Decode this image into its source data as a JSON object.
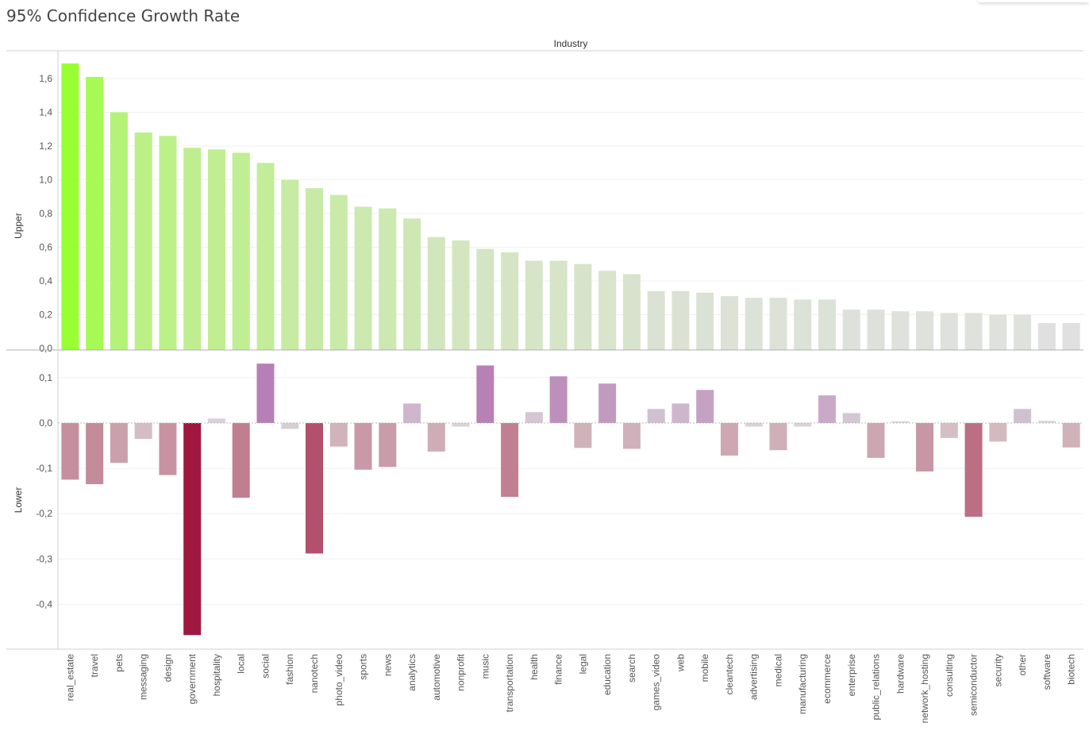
{
  "title": "95% Confidence Growth Rate",
  "chart_data": [
    {
      "type": "bar",
      "column_header": "Industry",
      "ylabel": "Upper",
      "ylim": [
        0,
        1.7
      ],
      "yticks": [
        0.0,
        0.2,
        0.4,
        0.6,
        0.8,
        1.0,
        1.2,
        1.4,
        1.6
      ],
      "yticks_labels": [
        "0,0",
        "0,2",
        "0,4",
        "0,6",
        "0,8",
        "1,0",
        "1,2",
        "1,4",
        "1,6"
      ],
      "categories": [
        "real_estate",
        "travel",
        "pets",
        "messaging",
        "design",
        "government",
        "hospitality",
        "local",
        "social",
        "fashion",
        "nanotech",
        "photo_video",
        "sports",
        "news",
        "analytics",
        "automotive",
        "nonprofit",
        "music",
        "transportation",
        "health",
        "finance",
        "legal",
        "education",
        "search",
        "games_video",
        "web",
        "mobile",
        "cleantech",
        "advertising",
        "medical",
        "manufacturing",
        "ecommerce",
        "enterprise",
        "public_relations",
        "hardware",
        "network_hosting",
        "consulting",
        "semiconductor",
        "security",
        "other",
        "software",
        "biotech"
      ],
      "values": [
        1.69,
        1.61,
        1.4,
        1.28,
        1.26,
        1.19,
        1.18,
        1.16,
        1.1,
        1.0,
        0.95,
        0.91,
        0.84,
        0.83,
        0.77,
        0.66,
        0.64,
        0.59,
        0.57,
        0.52,
        0.52,
        0.5,
        0.46,
        0.44,
        0.34,
        0.34,
        0.33,
        0.31,
        0.3,
        0.3,
        0.29,
        0.29,
        0.23,
        0.23,
        0.22,
        0.22,
        0.21,
        0.21,
        0.2,
        0.2,
        0.15,
        0.15
      ],
      "colors": {
        "high": "#99ff33",
        "low": "#e0e0e0"
      },
      "grid": true
    },
    {
      "type": "bar",
      "ylabel": "Lower",
      "ylim": [
        -0.49,
        0.15
      ],
      "yticks": [
        -0.4,
        -0.3,
        -0.2,
        -0.1,
        0.0,
        0.1
      ],
      "yticks_labels": [
        "-0,4",
        "-0,3",
        "-0,2",
        "-0,1",
        "0,0",
        "0,1"
      ],
      "categories": [
        "real_estate",
        "travel",
        "pets",
        "messaging",
        "design",
        "government",
        "hospitality",
        "local",
        "social",
        "fashion",
        "nanotech",
        "photo_video",
        "sports",
        "news",
        "analytics",
        "automotive",
        "nonprofit",
        "music",
        "transportation",
        "health",
        "finance",
        "legal",
        "education",
        "search",
        "games_video",
        "web",
        "mobile",
        "cleantech",
        "advertising",
        "medical",
        "manufacturing",
        "ecommerce",
        "enterprise",
        "public_relations",
        "hardware",
        "network_hosting",
        "consulting",
        "semiconductor",
        "security",
        "other",
        "software",
        "biotech"
      ],
      "values": [
        -0.125,
        -0.135,
        -0.088,
        -0.035,
        -0.115,
        -0.468,
        0.01,
        -0.165,
        0.131,
        -0.013,
        -0.288,
        -0.052,
        -0.103,
        -0.097,
        0.043,
        -0.063,
        -0.008,
        0.127,
        -0.163,
        0.024,
        0.103,
        -0.055,
        0.087,
        -0.057,
        0.031,
        0.043,
        0.073,
        -0.072,
        -0.008,
        -0.06,
        -0.008,
        0.061,
        0.022,
        -0.077,
        0.004,
        -0.107,
        -0.033,
        -0.207,
        -0.041,
        0.031,
        0.005,
        -0.054
      ],
      "colors": {
        "negative": "#a0173f",
        "positive": "#b67fb5",
        "neutral": "#dedede"
      },
      "grid": true
    }
  ]
}
